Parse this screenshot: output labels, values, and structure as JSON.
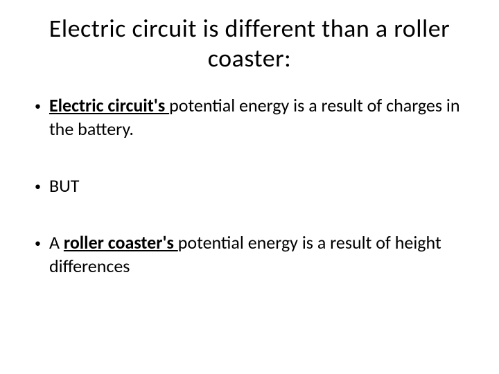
{
  "slide": {
    "title": "Electric circuit is different than a roller coaster:",
    "bullets": [
      {
        "lead_underlined_bold": "Electric circuit's ",
        "rest": "potential energy is a result of charges in the battery."
      },
      {
        "lead_underlined_bold": "",
        "rest": "BUT"
      },
      {
        "pre": "A ",
        "lead_underlined_bold": "roller coaster's ",
        "rest": "potential energy is a result of height differences"
      }
    ],
    "colors": {
      "background": "#ffffff",
      "text": "#000000"
    },
    "fontsize": {
      "title": 36,
      "body": 26
    }
  }
}
